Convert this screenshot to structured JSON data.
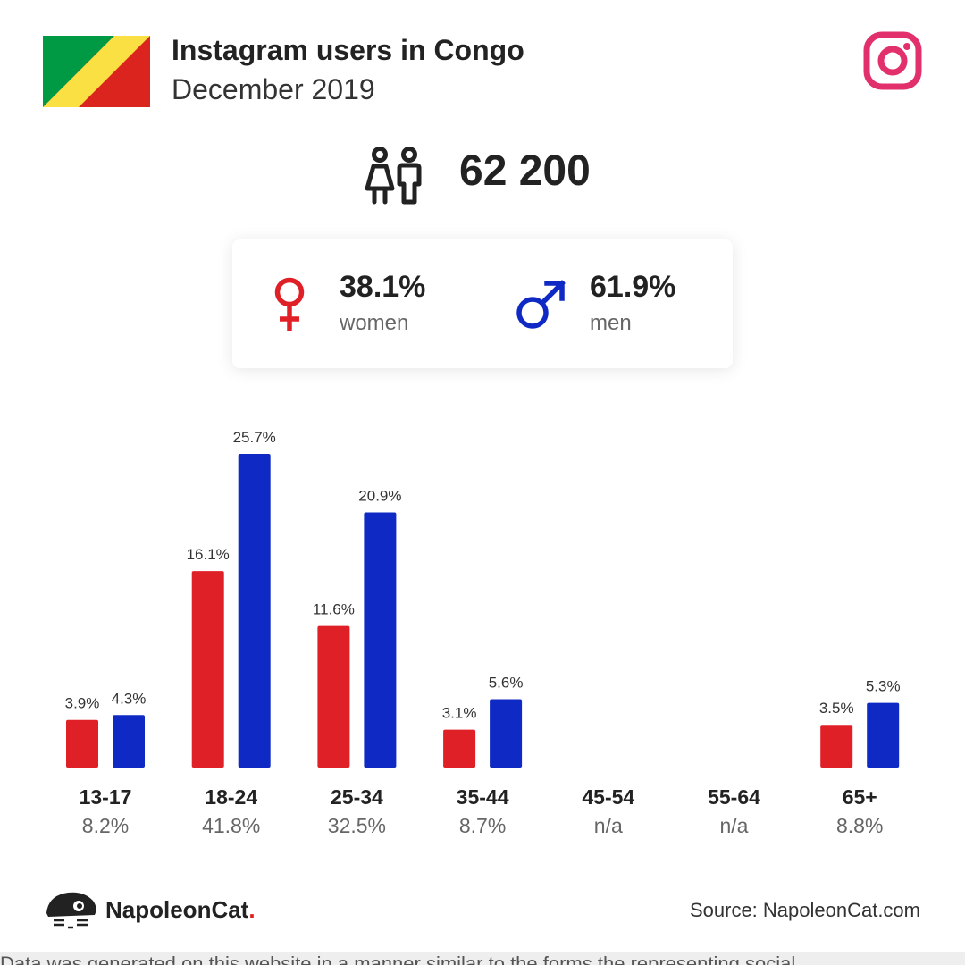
{
  "header": {
    "title": "Instagram users in Congo",
    "subtitle": "December 2019"
  },
  "summary": {
    "total": "62 200",
    "women": {
      "percent": "38.1%",
      "label": "women"
    },
    "men": {
      "percent": "61.9%",
      "label": "men"
    }
  },
  "colors": {
    "women": "#e02027",
    "men": "#0f2ac4",
    "instagram": "#e1306c",
    "flag_green": "#009a44",
    "flag_yellow": "#fbe044",
    "flag_red": "#dc241f"
  },
  "chart_data": {
    "type": "bar",
    "categories": [
      "13-17",
      "18-24",
      "25-34",
      "35-44",
      "45-54",
      "55-64",
      "65+"
    ],
    "category_totals": [
      "8.2%",
      "41.8%",
      "32.5%",
      "8.7%",
      "n/a",
      "n/a",
      "8.8%"
    ],
    "series": [
      {
        "name": "women",
        "values": [
          3.9,
          16.1,
          11.6,
          3.1,
          null,
          null,
          3.5
        ],
        "labels": [
          "3.9%",
          "16.1%",
          "11.6%",
          "3.1%",
          "",
          "",
          "3.5%"
        ]
      },
      {
        "name": "men",
        "values": [
          4.3,
          25.7,
          20.9,
          5.6,
          null,
          null,
          5.3
        ],
        "labels": [
          "4.3%",
          "25.7%",
          "20.9%",
          "5.6%",
          "",
          "",
          "5.3%"
        ]
      }
    ],
    "ylim": [
      0,
      25.7
    ],
    "grid": false,
    "title": "",
    "xlabel": "",
    "ylabel": ""
  },
  "footer": {
    "brand": "NapoleonCat",
    "brand_dot": ".",
    "source": "Source: NapoleonCat.com",
    "note": "Data was generated on this website in a manner similar to the forms the representing social"
  },
  "icons": [
    "congo-flag-icon",
    "instagram-icon",
    "users-icon",
    "female-icon",
    "male-icon",
    "napoleoncat-logo-icon"
  ]
}
